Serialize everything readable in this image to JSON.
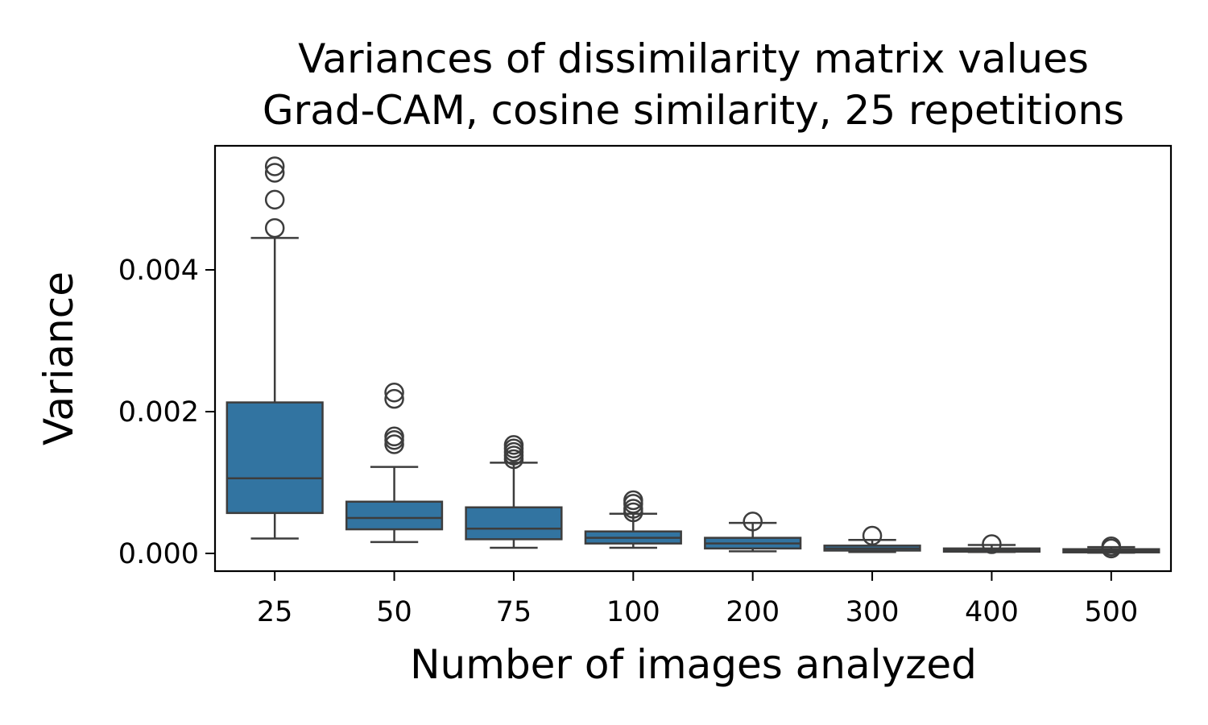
{
  "chart_data": {
    "type": "box",
    "title": "Variances of dissimilarity matrix values",
    "subtitle": "Grad-CAM, cosine similarity, 25 repetitions",
    "xlabel": "Number of images analyzed",
    "ylabel": "Variance",
    "categories": [
      "25",
      "50",
      "75",
      "100",
      "200",
      "300",
      "400",
      "500"
    ],
    "ylim": [
      -0.00025,
      0.00575
    ],
    "yticks": [
      0.0,
      0.002,
      0.004
    ],
    "ytick_labels": [
      "0.000",
      "0.002",
      "0.004"
    ],
    "grid": false,
    "legend": "none",
    "box_color": "#3274a1",
    "line_color": "#3d3d3d",
    "boxes": [
      {
        "category": "25",
        "whisker_low": 0.00021,
        "q1": 0.00057,
        "median": 0.00106,
        "q3": 0.00213,
        "whisker_high": 0.00445,
        "outliers": [
          0.00459,
          0.00499,
          0.00537,
          0.00546
        ]
      },
      {
        "category": "50",
        "whisker_low": 0.00016,
        "q1": 0.00034,
        "median": 0.0005,
        "q3": 0.00073,
        "whisker_high": 0.00122,
        "outliers": [
          0.00154,
          0.0016,
          0.00165,
          0.00218,
          0.00227
        ]
      },
      {
        "category": "75",
        "whisker_low": 8e-05,
        "q1": 0.0002,
        "median": 0.00035,
        "q3": 0.00065,
        "whisker_high": 0.00128,
        "outliers": [
          0.00133,
          0.00138,
          0.00143,
          0.00148,
          0.00153
        ]
      },
      {
        "category": "100",
        "whisker_low": 8e-05,
        "q1": 0.00014,
        "median": 0.00022,
        "q3": 0.00031,
        "whisker_high": 0.00056,
        "outliers": [
          0.00058,
          0.00063,
          0.0007,
          0.00075
        ]
      },
      {
        "category": "200",
        "whisker_low": 3e-05,
        "q1": 7e-05,
        "median": 0.00014,
        "q3": 0.00022,
        "whisker_high": 0.00043,
        "outliers": [
          0.00045
        ]
      },
      {
        "category": "300",
        "whisker_low": 2e-05,
        "q1": 4e-05,
        "median": 7e-05,
        "q3": 0.00011,
        "whisker_high": 0.00019,
        "outliers": [
          0.00025
        ]
      },
      {
        "category": "400",
        "whisker_low": 2e-05,
        "q1": 3e-05,
        "median": 5e-05,
        "q3": 7e-05,
        "whisker_high": 0.00012,
        "outliers": [
          0.00013
        ]
      },
      {
        "category": "500",
        "whisker_low": 1e-05,
        "q1": 2e-05,
        "median": 4e-05,
        "q3": 6e-05,
        "whisker_high": 9e-05,
        "outliers": [
          7e-05,
          0.0001
        ]
      }
    ]
  }
}
